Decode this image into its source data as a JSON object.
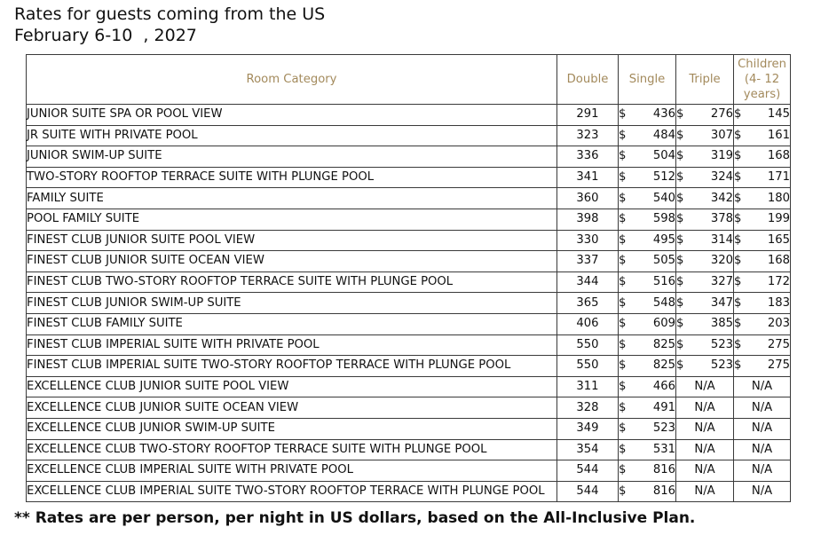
{
  "title": {
    "line1": "Rates for guests coming from the US",
    "line2": "February 6-10  , 2027"
  },
  "table": {
    "headers": {
      "category": "Room Category",
      "double": "Double",
      "single": "Single",
      "triple": "Triple",
      "children_line1": "Children",
      "children_line2": "(4- 12",
      "children_line3": "years)"
    },
    "currency": "$",
    "rows": [
      {
        "category": "JUNIOR SUITE SPA OR POOL VIEW",
        "double": "291",
        "single": "436",
        "triple": "276",
        "children": "145"
      },
      {
        "category": "JR SUITE WITH PRIVATE POOL",
        "double": "323",
        "single": "484",
        "triple": "307",
        "children": "161"
      },
      {
        "category": "JUNIOR SWIM-UP SUITE",
        "double": "336",
        "single": "504",
        "triple": "319",
        "children": "168"
      },
      {
        "category": "TWO-STORY ROOFTOP TERRACE SUITE WITH PLUNGE POOL",
        "double": "341",
        "single": "512",
        "triple": "324",
        "children": "171"
      },
      {
        "category": "FAMILY SUITE",
        "double": "360",
        "single": "540",
        "triple": "342",
        "children": "180"
      },
      {
        "category": "POOL FAMILY SUITE",
        "double": "398",
        "single": "598",
        "triple": "378",
        "children": "199"
      },
      {
        "category": "FINEST CLUB JUNIOR SUITE POOL VIEW",
        "double": "330",
        "single": "495",
        "triple": "314",
        "children": "165"
      },
      {
        "category": "FINEST CLUB JUNIOR SUITE OCEAN VIEW",
        "double": "337",
        "single": "505",
        "triple": "320",
        "children": "168"
      },
      {
        "category": "FINEST CLUB TWO-STORY ROOFTOP TERRACE SUITE WITH PLUNGE POOL",
        "double": "344",
        "single": "516",
        "triple": "327",
        "children": "172"
      },
      {
        "category": "FINEST CLUB JUNIOR SWIM-UP SUITE",
        "double": "365",
        "single": "548",
        "triple": "347",
        "children": "183"
      },
      {
        "category": "FINEST CLUB FAMILY SUITE",
        "double": "406",
        "single": "609",
        "triple": "385",
        "children": "203"
      },
      {
        "category": "FINEST CLUB IMPERIAL SUITE WITH PRIVATE POOL",
        "double": "550",
        "single": "825",
        "triple": "523",
        "children": "275"
      },
      {
        "category": "FINEST CLUB IMPERIAL SUITE TWO-STORY ROOFTOP TERRACE WITH PLUNGE POOL",
        "double": "550",
        "single": "825",
        "triple": "523",
        "children": "275"
      },
      {
        "category": "EXCELLENCE CLUB JUNIOR SUITE POOL VIEW",
        "double": "311",
        "single": "466",
        "triple": "N/A",
        "children": "N/A"
      },
      {
        "category": "EXCELLENCE CLUB JUNIOR SUITE OCEAN VIEW",
        "double": "328",
        "single": "491",
        "triple": "N/A",
        "children": "N/A"
      },
      {
        "category": "EXCELLENCE CLUB JUNIOR SWIM-UP SUITE",
        "double": "349",
        "single": "523",
        "triple": "N/A",
        "children": "N/A"
      },
      {
        "category": "EXCELLENCE CLUB TWO-STORY ROOFTOP TERRACE SUITE WITH PLUNGE POOL",
        "double": "354",
        "single": "531",
        "triple": "N/A",
        "children": "N/A"
      },
      {
        "category": "EXCELLENCE CLUB IMPERIAL SUITE WITH PRIVATE POOL",
        "double": "544",
        "single": "816",
        "triple": "N/A",
        "children": "N/A"
      },
      {
        "category": "EXCELLENCE CLUB IMPERIAL SUITE TWO-STORY ROOFTOP TERRACE WITH PLUNGE POOL",
        "double": "544",
        "single": "816",
        "triple": "N/A",
        "children": "N/A"
      }
    ]
  },
  "footnote": "** Rates are per person, per night in US dollars, based on the All-Inclusive Plan.",
  "colors": {
    "header_text": "#a38a5c",
    "border": "#3a3a3a"
  }
}
